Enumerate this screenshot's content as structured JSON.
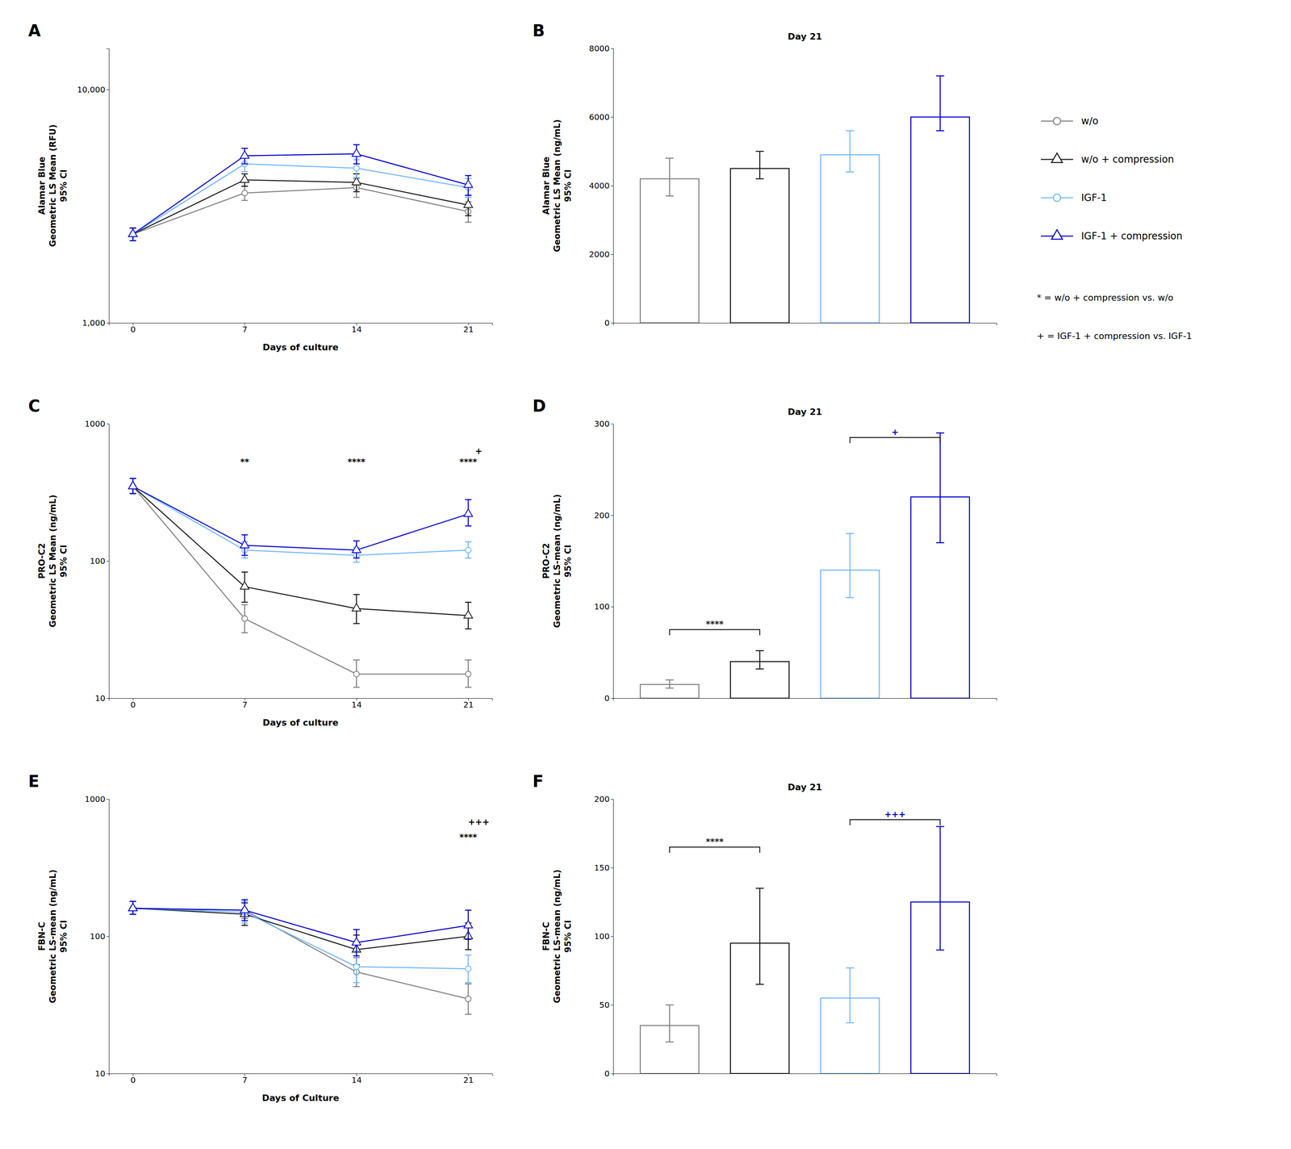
{
  "chart_data": [
    {
      "type": "line",
      "panel": "A",
      "xlabel": "Days of culture",
      "ylabel": "Alamar Blue\nGeometric LS Mean (RFU)\n95% CI",
      "x": [
        0,
        7,
        14,
        21
      ],
      "xlim": [
        -1.5,
        22.5
      ],
      "xticks": [
        0,
        7,
        14,
        21
      ],
      "ylim": [
        1000,
        15000
      ],
      "yticks": [
        {
          "value": 1000,
          "label": "1,000"
        },
        {
          "value": 10000,
          "label": "10,000"
        }
      ],
      "log": "y",
      "grid": false,
      "legend": "right",
      "series": [
        {
          "name": "w/o",
          "color": "#808080",
          "marker": "circle",
          "values": [
            2400,
            3600,
            3800,
            3000
          ],
          "errors": [
            150,
            250,
            350,
            300
          ]
        },
        {
          "name": "w/o + compression",
          "color": "#1a1a1a",
          "marker": "triangle",
          "values": [
            2400,
            4100,
            4000,
            3200
          ],
          "errors": [
            150,
            250,
            350,
            320
          ]
        },
        {
          "name": "IGF-1",
          "color": "#6db6ff",
          "marker": "circle",
          "values": [
            2400,
            4800,
            4600,
            3800
          ],
          "errors": [
            150,
            350,
            400,
            350
          ]
        },
        {
          "name": "IGF-1 + compression",
          "color": "#0000cd",
          "marker": "triangle",
          "values": [
            2400,
            5200,
            5300,
            3900
          ],
          "errors": [
            150,
            400,
            500,
            380
          ]
        }
      ],
      "notes": [
        "* = w/o + compression vs. w/o",
        "+ = IGF-1 + compression vs. IGF-1"
      ]
    },
    {
      "type": "bar",
      "panel": "B",
      "title": "Day 21",
      "ylabel": "Alamar Blue\nGeometric LS Mean (ng/mL)\n95% CI",
      "categories": [
        null,
        null,
        null,
        null
      ],
      "values": [
        4200,
        4500,
        4900,
        6000
      ],
      "errors_low": [
        500,
        300,
        500,
        400
      ],
      "errors_high": [
        600,
        500,
        700,
        1200
      ],
      "colors": [
        "#808080",
        "#1a1a1a",
        "#6db6ff",
        "#0000cd"
      ],
      "ylim": [
        0,
        8000
      ],
      "yticks": [
        0,
        2000,
        4000,
        6000,
        8000
      ],
      "tick_labels": "y",
      "grid": false
    },
    {
      "type": "line",
      "panel": "C",
      "xlabel": "Days of culture",
      "ylabel": "PRO-C2\nGeometric LS Mean (ng/mL)\n95% CI",
      "x": [
        0,
        7,
        14,
        21
      ],
      "xlim": [
        -1.5,
        22.5
      ],
      "xticks": [
        0,
        7,
        14,
        21
      ],
      "ylim": [
        10,
        1000
      ],
      "yticks": [
        10,
        100,
        1000
      ],
      "log": "y",
      "grid": false,
      "series": [
        {
          "color": "#808080",
          "marker": "circle",
          "values": [
            350,
            38,
            15,
            15
          ],
          "errors_low": [
            40,
            8,
            3,
            3
          ],
          "errors_high": [
            50,
            10,
            4,
            4
          ]
        },
        {
          "color": "#1a1a1a",
          "marker": "triangle",
          "values": [
            350,
            65,
            45,
            40
          ],
          "errors_low": [
            40,
            15,
            10,
            8
          ],
          "errors_high": [
            50,
            18,
            12,
            10
          ]
        },
        {
          "color": "#6db6ff",
          "marker": "circle",
          "values": [
            350,
            120,
            110,
            120
          ],
          "errors_low": [
            40,
            15,
            12,
            15
          ],
          "errors_high": [
            50,
            18,
            15,
            18
          ]
        },
        {
          "color": "#0000cd",
          "marker": "triangle",
          "values": [
            350,
            130,
            120,
            220
          ],
          "errors_low": [
            40,
            20,
            15,
            40
          ],
          "errors_high": [
            50,
            25,
            20,
            60
          ]
        }
      ],
      "annotations": [
        {
          "x": 7,
          "y": 500,
          "text": "**"
        },
        {
          "x": 14,
          "y": 500,
          "text": "****"
        },
        {
          "x": 21,
          "y": 500,
          "text": "****"
        },
        {
          "x": 21,
          "y": 600,
          "text": "+"
        }
      ]
    },
    {
      "type": "bar",
      "panel": "D",
      "title": "Day 21",
      "ylabel": "PRO-C2\nGeometric LS-mean (ng/mL)\n95% CI",
      "categories": [
        null,
        null,
        null,
        null
      ],
      "values": [
        15,
        40,
        140,
        220
      ],
      "errors_low": [
        4,
        8,
        30,
        50
      ],
      "errors_high": [
        5,
        12,
        40,
        70
      ],
      "colors": [
        "#808080",
        "#1a1a1a",
        "#6db6ff",
        "#0000cd"
      ],
      "ylim": [
        0,
        300
      ],
      "yticks": [
        0,
        100,
        200,
        300
      ],
      "tick_labels": "y",
      "grid": false,
      "annotations": [
        {
          "from": 0,
          "to": 1,
          "y": 75,
          "text": "****",
          "color": "#1a1a1a"
        },
        {
          "from": 2,
          "to": 3,
          "y": 285,
          "text": "+",
          "color": "#0000cd"
        }
      ]
    },
    {
      "type": "line",
      "panel": "E",
      "xlabel": "Days of Culture",
      "ylabel": "FBN-C\nGeometric LS-mean (ng/mL)\n95% CI",
      "x": [
        0,
        7,
        14,
        21
      ],
      "xlim": [
        -1.5,
        22.5
      ],
      "xticks": [
        0,
        7,
        14,
        21
      ],
      "ylim": [
        10,
        1000
      ],
      "yticks": [
        10,
        100,
        1000
      ],
      "log": "y",
      "grid": false,
      "series": [
        {
          "color": "#808080",
          "marker": "circle",
          "values": [
            160,
            155,
            55,
            35
          ],
          "errors_low": [
            15,
            20,
            12,
            8
          ],
          "errors_high": [
            20,
            25,
            15,
            10
          ]
        },
        {
          "color": "#1a1a1a",
          "marker": "triangle",
          "values": [
            160,
            145,
            80,
            100
          ],
          "errors_low": [
            15,
            25,
            18,
            20
          ],
          "errors_high": [
            20,
            30,
            22,
            25
          ]
        },
        {
          "color": "#6db6ff",
          "marker": "circle",
          "values": [
            160,
            150,
            60,
            58
          ],
          "errors_low": [
            15,
            25,
            14,
            12
          ],
          "errors_high": [
            20,
            30,
            18,
            15
          ]
        },
        {
          "color": "#0000cd",
          "marker": "triangle",
          "values": [
            160,
            155,
            90,
            120
          ],
          "errors_low": [
            15,
            25,
            18,
            25
          ],
          "errors_high": [
            20,
            30,
            22,
            35
          ]
        }
      ],
      "annotations": [
        {
          "x": 21,
          "y": 500,
          "text": "****"
        },
        {
          "x": 21,
          "y": 650,
          "text": "+++"
        }
      ]
    },
    {
      "type": "bar",
      "panel": "F",
      "title": "Day 21",
      "ylabel": "FBN-C\nGeometric LS-mean (ng/mL)\n95% CI",
      "categories": [
        null,
        null,
        null,
        null
      ],
      "values": [
        35,
        95,
        55,
        125
      ],
      "errors_low": [
        12,
        30,
        18,
        35
      ],
      "errors_high": [
        15,
        40,
        22,
        55
      ],
      "colors": [
        "#808080",
        "#1a1a1a",
        "#6db6ff",
        "#0000cd"
      ],
      "ylim": [
        0,
        200
      ],
      "yticks": [
        0,
        50,
        100,
        150,
        200
      ],
      "tick_labels": "y",
      "grid": false,
      "annotations": [
        {
          "from": 0,
          "to": 1,
          "y": 165,
          "text": "****",
          "color": "#1a1a1a"
        },
        {
          "from": 2,
          "to": 3,
          "y": 185,
          "text": "+++",
          "color": "#0000cd"
        }
      ]
    }
  ]
}
